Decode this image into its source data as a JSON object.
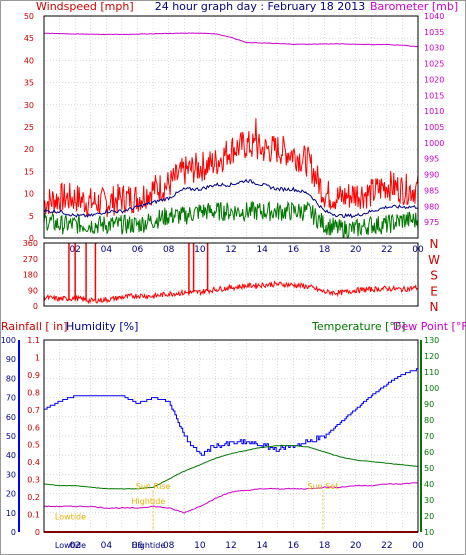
{
  "title": "24 hour graph day : February 18 2013",
  "colors": {
    "background": "#ffffff",
    "frame": "#000000",
    "grid": "#b8b8b8",
    "red": "#ff0000",
    "darkred": "#cc0000",
    "navy": "#00008b",
    "blue": "#0000ff",
    "green": "#007700",
    "magenta": "#cc00cc",
    "orange": "#e8b000"
  },
  "x_ticks": [
    "02",
    "04",
    "06",
    "08",
    "10",
    "12",
    "14",
    "16",
    "18",
    "20",
    "22",
    "00"
  ],
  "chart_data": [
    {
      "type": "line",
      "name": "wind-barometer",
      "title": "24 hour graph day : February 18 2013",
      "ylabel_left": "Windspeed [mph]",
      "ylabel_right": "Barometer [mb]",
      "x_unit": "hour",
      "xlim": [
        0,
        24
      ],
      "ylim_left": [
        0,
        50
      ],
      "ylim_right": [
        970,
        1040
      ],
      "y_ticks_left": [
        "0",
        "5",
        "10",
        "15",
        "20",
        "25",
        "30",
        "35",
        "40",
        "45",
        "50"
      ],
      "y_ticks_right": [
        "975",
        "980",
        "985",
        "990",
        "995",
        "1000",
        "1005",
        "1010",
        "1015",
        "1020",
        "1025",
        "1030",
        "1035",
        "1040"
      ],
      "x": [
        0,
        1,
        2,
        3,
        4,
        5,
        6,
        7,
        8,
        9,
        10,
        11,
        12,
        13,
        14,
        15,
        16,
        17,
        18,
        19,
        20,
        21,
        22,
        23,
        24
      ],
      "series": [
        {
          "role": "gust",
          "color": "red",
          "axis": "left",
          "values": [
            8,
            9,
            9,
            8,
            8,
            9,
            9,
            11,
            12,
            15,
            16,
            17,
            20,
            21,
            20,
            20,
            19,
            17,
            10,
            9,
            10,
            10,
            12,
            11,
            11
          ],
          "peak": {
            "x": 13.6,
            "y": 27
          }
        },
        {
          "role": "average",
          "color": "navy",
          "axis": "left",
          "values": [
            6,
            6,
            5,
            5,
            6,
            6,
            7,
            8,
            9,
            11,
            11,
            12,
            12,
            13,
            12,
            11,
            11,
            10,
            6,
            5,
            5,
            6,
            7,
            7,
            7
          ]
        },
        {
          "role": "low",
          "color": "green",
          "axis": "left",
          "values": [
            4,
            3,
            3,
            3,
            3,
            3,
            3,
            4,
            5,
            5,
            6,
            6,
            6,
            6,
            6,
            6,
            6,
            6,
            3,
            2,
            2,
            3,
            3,
            4,
            4
          ]
        },
        {
          "role": "barometer",
          "color": "magenta",
          "axis": "right",
          "values": [
            1034.5,
            1034.5,
            1034.3,
            1034.3,
            1034.2,
            1034.2,
            1034.3,
            1034.4,
            1034.5,
            1034.6,
            1034.6,
            1034.4,
            1033.3,
            1031.6,
            1031.5,
            1031.3,
            1031.1,
            1031.1,
            1031.2,
            1031.2,
            1031.1,
            1031.0,
            1031.0,
            1030.8,
            1030.3
          ]
        }
      ]
    },
    {
      "type": "line",
      "name": "wind-direction",
      "ylabel_right": "N W S E N",
      "compass": [
        "N",
        "W",
        "S",
        "E",
        "N"
      ],
      "xlim": [
        0,
        24
      ],
      "ylim": [
        0,
        360
      ],
      "y_ticks": [
        "0",
        "90",
        "180",
        "270",
        "360"
      ],
      "x": [
        0,
        1,
        2,
        3,
        4,
        5,
        6,
        7,
        8,
        9,
        10,
        11,
        12,
        13,
        14,
        15,
        16,
        17,
        18,
        19,
        20,
        21,
        22,
        23,
        24
      ],
      "values": [
        50,
        40,
        45,
        30,
        35,
        50,
        60,
        55,
        70,
        75,
        80,
        95,
        105,
        115,
        120,
        125,
        120,
        110,
        80,
        75,
        90,
        95,
        100,
        95,
        105
      ],
      "spikes_to_360": [
        1.6,
        2.0,
        2.7,
        3.3,
        9.3,
        9.6,
        10.5
      ]
    },
    {
      "type": "line",
      "name": "rain-humidity-temperature",
      "ylabel_left_1": "Rainfall [ in]",
      "ylabel_left_2": "Humidity [%]",
      "ylabel_right_1": "Temperature [°F]",
      "ylabel_right_2": "Dew Point [°F]",
      "xlim": [
        0,
        24
      ],
      "ylim_rain": [
        0,
        1.1
      ],
      "ylim_humidity": [
        0,
        100
      ],
      "ylim_temperature": [
        10,
        130
      ],
      "y_ticks_rain": [
        "0",
        "0.1",
        "0.2",
        "0.3",
        "0.4",
        "0.5",
        "0.6",
        "0.7",
        "0.8",
        "0.9",
        "1",
        "1.1"
      ],
      "y_ticks_humidity": [
        "0",
        "10",
        "20",
        "30",
        "40",
        "50",
        "60",
        "70",
        "80",
        "90",
        "100"
      ],
      "y_ticks_temperature": [
        "10",
        "20",
        "30",
        "40",
        "50",
        "60",
        "70",
        "80",
        "90",
        "100",
        "110",
        "120",
        "130"
      ],
      "x": [
        0,
        1,
        2,
        3,
        4,
        5,
        6,
        7,
        8,
        9,
        10,
        11,
        12,
        13,
        14,
        15,
        16,
        17,
        18,
        19,
        20,
        21,
        22,
        23,
        24
      ],
      "series": [
        {
          "role": "humidity",
          "color": "blue",
          "values": [
            64,
            68,
            71,
            71,
            71,
            71,
            67,
            70,
            68,
            50,
            40,
            45,
            46,
            47,
            45,
            43,
            45,
            47,
            50,
            57,
            64,
            71,
            77,
            82,
            85
          ]
        },
        {
          "role": "temperature",
          "color": "green",
          "values": [
            40,
            39,
            39,
            38,
            37,
            37,
            37,
            38,
            43,
            48,
            52,
            56,
            59,
            61,
            63,
            64,
            64,
            63,
            60,
            57,
            55,
            54,
            53,
            52,
            51
          ]
        },
        {
          "role": "dew point",
          "color": "magenta",
          "values": [
            26,
            26,
            26,
            26,
            25,
            25,
            25,
            26,
            25,
            22,
            26,
            31,
            35,
            36,
            37,
            37,
            37,
            37,
            38,
            38,
            39,
            39,
            40,
            40,
            41
          ]
        },
        {
          "role": "rainfall",
          "color": "red",
          "values": [
            0,
            0,
            0,
            0,
            0,
            0,
            0,
            0,
            0,
            0,
            0,
            0,
            0,
            0,
            0,
            0,
            0,
            0,
            0,
            0,
            0,
            0,
            0,
            0,
            0
          ]
        }
      ],
      "annotations": [
        {
          "text": "Lowtide",
          "x": 1.7,
          "y_pct": 6.5,
          "color": "orange"
        },
        {
          "text": "Hightide",
          "x": 6.7,
          "y_pct": 14.5,
          "color": "orange"
        },
        {
          "text": "Sun Rise",
          "x": 7.0,
          "y_pct": 22.5,
          "color": "orange",
          "marker": true
        },
        {
          "text": "Sun Set",
          "x": 17.9,
          "y_pct": 22.5,
          "color": "orange",
          "marker": true
        }
      ],
      "bottom_labels": [
        {
          "text": "Lowtide",
          "x": 1.7
        },
        {
          "text": "Hightide",
          "x": 6.7
        }
      ]
    }
  ]
}
